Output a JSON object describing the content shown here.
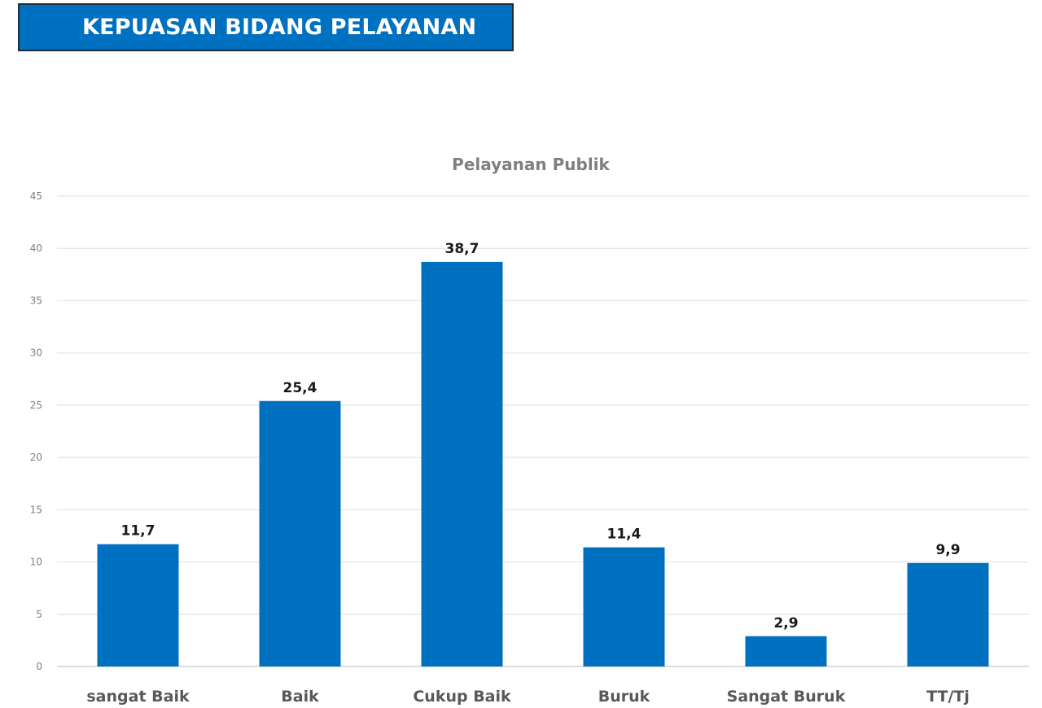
{
  "header": {
    "title": "KEPUASAN BIDANG PELAYANAN",
    "background_color": "#0070c0"
  },
  "chart_data": {
    "type": "bar",
    "title": "Pelayanan Publik",
    "xlabel": "",
    "ylabel": "",
    "categories": [
      "sangat Baik",
      "Baik",
      "Cukup Baik",
      "Buruk",
      "Sangat Buruk",
      "TT/Tj"
    ],
    "values": [
      11.7,
      25.4,
      38.7,
      11.4,
      2.9,
      9.9
    ],
    "data_labels": [
      "11,7",
      "25,4",
      "38,7",
      "11,4",
      "2,9",
      "9,9"
    ],
    "ylim": [
      0,
      45
    ],
    "y_ticks": [
      0,
      5,
      10,
      15,
      20,
      25,
      30,
      35,
      40,
      45
    ],
    "grid": true,
    "legend": "none",
    "bar_color": "#0070c0"
  }
}
